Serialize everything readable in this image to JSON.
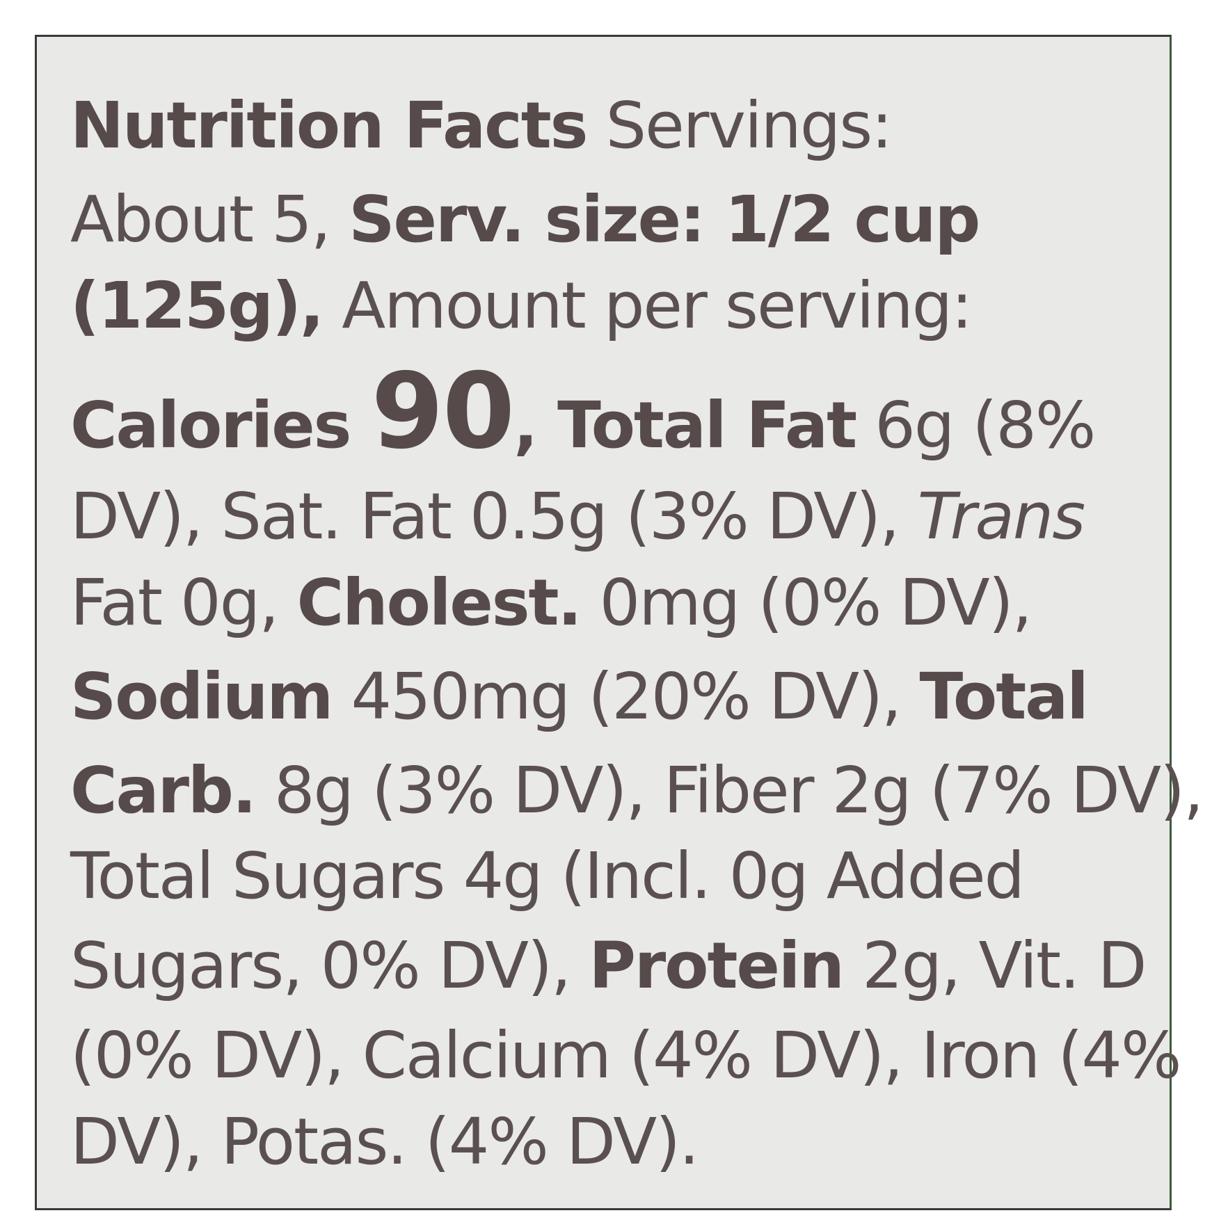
{
  "label": {
    "lines": [
      [
        {
          "text": "Nutrition Facts",
          "style": "bold"
        },
        {
          "text": " Servings:",
          "style": "normal"
        }
      ],
      [
        {
          "text": "About 5, ",
          "style": "normal"
        },
        {
          "text": "Serv. size: 1/2 cup",
          "style": "bold"
        }
      ],
      [
        {
          "text": "(125g),",
          "style": "bold"
        },
        {
          "text": " Amount per serving:",
          "style": "normal"
        }
      ],
      [
        {
          "text": "Calories ",
          "style": "bold"
        },
        {
          "text": "90",
          "style": "large"
        },
        {
          "text": ", Total Fat",
          "style": "bold"
        },
        {
          "text": " 6g (8%",
          "style": "normal"
        }
      ],
      [
        {
          "text": "DV), Sat. Fat 0.5g (3% DV), ",
          "style": "normal"
        },
        {
          "text": "Trans",
          "style": "italic"
        }
      ],
      [
        {
          "text": "Fat 0g, ",
          "style": "normal"
        },
        {
          "text": "Cholest.",
          "style": "bold"
        },
        {
          "text": " 0mg (0% DV),",
          "style": "normal"
        }
      ],
      [
        {
          "text": "Sodium",
          "style": "bold"
        },
        {
          "text": " 450mg (20% DV), ",
          "style": "normal"
        },
        {
          "text": "Total",
          "style": "bold"
        }
      ],
      [
        {
          "text": "Carb.",
          "style": "bold"
        },
        {
          "text": " 8g (3% DV), Fiber 2g (7% DV),",
          "style": "normal"
        }
      ],
      [
        {
          "text": "Total Sugars 4g (Incl. 0g Added",
          "style": "normal"
        }
      ],
      [
        {
          "text": "Sugars, 0% DV), ",
          "style": "normal"
        },
        {
          "text": "Protein",
          "style": "bold"
        },
        {
          "text": " 2g, Vit. D",
          "style": "normal"
        }
      ],
      [
        {
          "text": "(0% DV), Calcium (4% DV), Iron (4%",
          "style": "normal"
        }
      ],
      [
        {
          "text": "DV), Potas. (4% DV).",
          "style": "normal"
        }
      ]
    ]
  }
}
